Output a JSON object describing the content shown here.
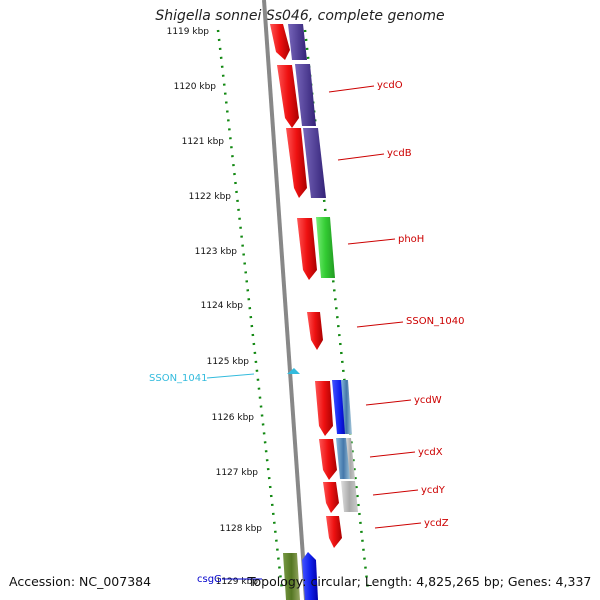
{
  "title": "Shigella sonnei Ss046, complete genome",
  "footer": {
    "accession": "Accession: NC_007384",
    "summary": "Topology: circular; Length: 4,825,265 bp; Genes: 4,337"
  },
  "axis": {
    "unit": "kbp",
    "ticks": [
      "1119 kbp",
      "1120 kbp",
      "1121 kbp",
      "1122 kbp",
      "1123 kbp",
      "1124 kbp",
      "1125 kbp",
      "1126 kbp",
      "1127 kbp",
      "1128 kbp",
      "1129 kbp"
    ]
  },
  "gene_labels": [
    {
      "name": "ycdO",
      "color": "#cc0000"
    },
    {
      "name": "ycdB",
      "color": "#cc0000"
    },
    {
      "name": "phoH",
      "color": "#cc0000"
    },
    {
      "name": "SSON_1040",
      "color": "#cc0000"
    },
    {
      "name": "SSON_1041",
      "color": "#33bbdd"
    },
    {
      "name": "ycdW",
      "color": "#cc0000"
    },
    {
      "name": "ycdX",
      "color": "#cc0000"
    },
    {
      "name": "ycdY",
      "color": "#cc0000"
    },
    {
      "name": "ycdZ",
      "color": "#cc0000"
    },
    {
      "name": "csgG",
      "color": "#0000cc"
    }
  ],
  "colors": {
    "backbone": "#888888",
    "gene_red": "#ee1111",
    "cog_purple": "#554499",
    "cog_green": "#33cc33",
    "cog_blue": "#1122ee",
    "cog_steel": "#4477aa",
    "cog_gray": "#aaaaaa",
    "cog_olive": "#557722",
    "gc_track": "#118811"
  }
}
